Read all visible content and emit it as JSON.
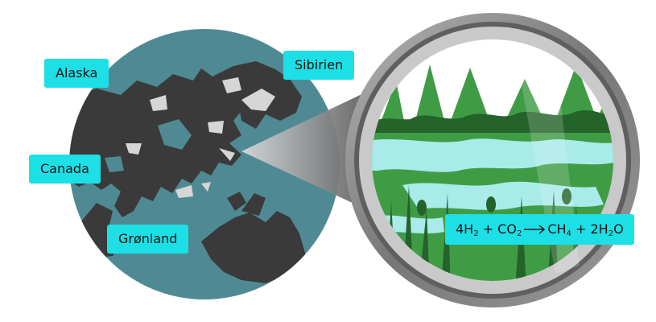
{
  "labels": {
    "alaska": "Alaska",
    "sibirien": "Sibirien",
    "canada": "Canada",
    "gronland": "Grønland"
  },
  "equation": {
    "t1": "4H",
    "s1": "2",
    "t2": " + CO",
    "s2": "2",
    "t3": "CH",
    "s3": "4",
    "t4": " + 2H",
    "s4": "2",
    "t5": "O"
  },
  "colors": {
    "ocean": "#4f8a94",
    "land": "#3a3a3a",
    "ice": "#d6d6d6",
    "label_bg": "#1de0e6",
    "lens_rim": "#8a8a8a",
    "wetland_water": "#a8ebe9",
    "vegetation": "#3f9c45"
  }
}
